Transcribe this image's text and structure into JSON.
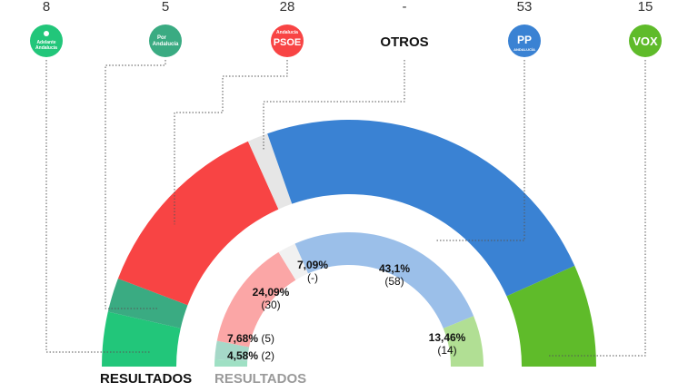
{
  "chart_data": {
    "type": "pie",
    "subtype": "semicircle-parliament",
    "colors": {
      "adelante": "#22c67a",
      "porandalucia": "#3aab82",
      "psoe": "#f84444",
      "otros": "#e6e6e6",
      "pp": "#3a82d3",
      "vox": "#5fbb2a"
    },
    "current": {
      "legend": "RESULTADOS",
      "parties": [
        {
          "key": "adelante",
          "seats_label": "8",
          "seats": 8,
          "color": "#22c67a",
          "logo": "adelante-andalucia-logo",
          "logo_lines": [
            "Adelante",
            "Andalucía"
          ]
        },
        {
          "key": "porandalucia",
          "seats_label": "5",
          "seats": 5,
          "color": "#3aab82",
          "logo": "por-andalucia-logo",
          "logo_lines": [
            "Por",
            "Andalucía"
          ]
        },
        {
          "key": "psoe",
          "seats_label": "28",
          "seats": 28,
          "color": "#f84444",
          "logo": "psoe-logo",
          "logo_lines": [
            "Andalucía",
            "PSOE"
          ]
        },
        {
          "key": "otros",
          "seats_label": "-",
          "seats": 3,
          "color": "#e6e6e6",
          "logo": "otros-label",
          "logo_lines": [
            "OTROS"
          ]
        },
        {
          "key": "pp",
          "seats_label": "53",
          "seats": 53,
          "color": "#3a82d3",
          "logo": "pp-logo",
          "logo_lines": [
            "PP",
            "ANDALUCÍA"
          ]
        },
        {
          "key": "vox",
          "seats_label": "15",
          "seats": 15,
          "color": "#5fbb2a",
          "logo": "vox-logo",
          "logo_lines": [
            "VOX"
          ]
        }
      ]
    },
    "previous": {
      "legend": "RESULTADOS",
      "parties": [
        {
          "key": "adelante",
          "pct": "4,58%",
          "seats": "(2)",
          "weight": 2,
          "color": "#9fe0c4"
        },
        {
          "key": "porandalucia",
          "pct": "7,68%",
          "seats": "(5)",
          "weight": 5,
          "color": "#a6d8c8"
        },
        {
          "key": "psoe",
          "pct": "24,09%",
          "seats": "(30)",
          "weight": 30,
          "color": "#fba6a6"
        },
        {
          "key": "otros",
          "pct": "7,09%",
          "seats": "(-)",
          "weight": 5,
          "color": "#f1f1f1"
        },
        {
          "key": "pp",
          "pct": "43,1%",
          "seats": "(58)",
          "weight": 58,
          "color": "#9bbfe9"
        },
        {
          "key": "vox",
          "pct": "13,46%",
          "seats": "(14)",
          "weight": 14,
          "color": "#b1df94"
        }
      ]
    }
  }
}
